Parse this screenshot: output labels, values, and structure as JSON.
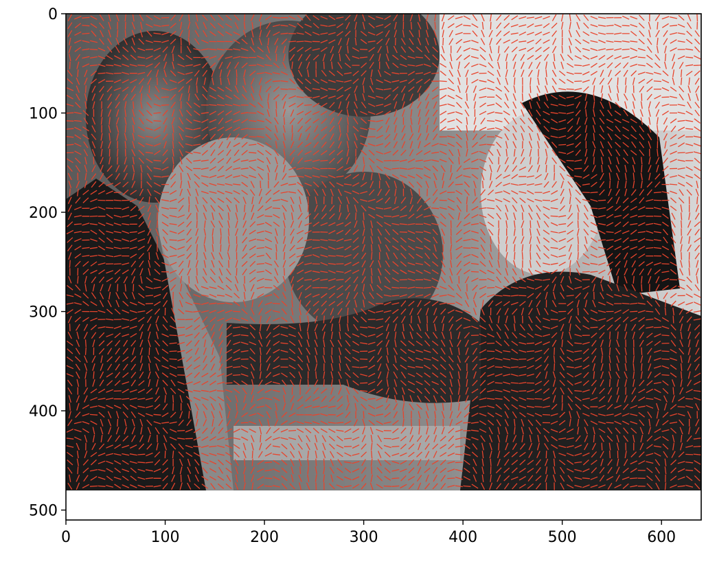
{
  "chart_data": {
    "type": "image",
    "title": "",
    "xlabel": "",
    "ylabel": "",
    "xlim": [
      0,
      640
    ],
    "ylim": [
      510,
      0
    ],
    "image_extent": {
      "width": 640,
      "height": 480
    },
    "x_ticks": [
      {
        "value": 0,
        "label": "0"
      },
      {
        "value": 100,
        "label": "100"
      },
      {
        "value": 200,
        "label": "200"
      },
      {
        "value": 300,
        "label": "300"
      },
      {
        "value": 400,
        "label": "400"
      },
      {
        "value": 500,
        "label": "500"
      },
      {
        "value": 600,
        "label": "600"
      }
    ],
    "y_ticks": [
      {
        "value": 0,
        "label": "0"
      },
      {
        "value": 100,
        "label": "100"
      },
      {
        "value": 200,
        "label": "200"
      },
      {
        "value": 300,
        "label": "300"
      },
      {
        "value": 400,
        "label": "400"
      },
      {
        "value": 500,
        "label": "500"
      }
    ],
    "grid": false,
    "legend": "none",
    "overlay": "orientation-field line segments",
    "overlay_color": "#e8442c",
    "image_colormap": "grayscale"
  }
}
